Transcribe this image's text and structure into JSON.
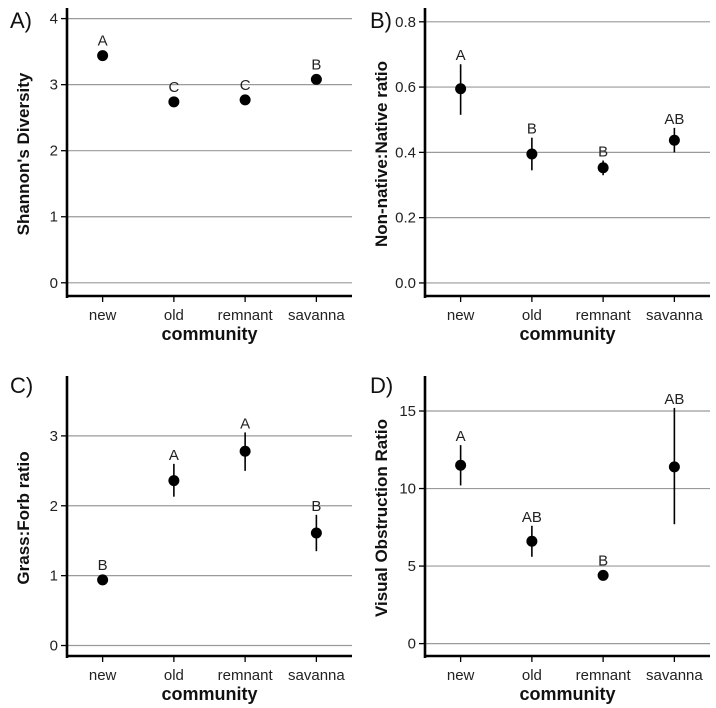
{
  "chart_data": [
    {
      "type": "scatter",
      "panel_label": "A)",
      "xlabel": "community",
      "ylabel": "Shannon's Diversity",
      "categories": [
        "new",
        "old",
        "remnant",
        "savanna"
      ],
      "values": [
        3.44,
        2.74,
        2.77,
        3.08
      ],
      "error_low": [
        3.4,
        2.69,
        2.72,
        3.04
      ],
      "error_high": [
        3.48,
        2.79,
        2.82,
        3.12
      ],
      "letters": [
        "A",
        "C",
        "C",
        "B"
      ],
      "ylim": [
        -0.2,
        4.1
      ],
      "yticks": [
        0,
        1,
        2,
        3,
        4
      ],
      "grid": true
    },
    {
      "type": "scatter",
      "panel_label": "B)",
      "xlabel": "community",
      "ylabel": "Non-native:Native ratio",
      "categories": [
        "new",
        "old",
        "remnant",
        "savanna"
      ],
      "values": [
        0.595,
        0.395,
        0.353,
        0.437
      ],
      "error_low": [
        0.515,
        0.345,
        0.33,
        0.4
      ],
      "error_high": [
        0.67,
        0.445,
        0.375,
        0.475
      ],
      "letters": [
        "A",
        "B",
        "B",
        "AB"
      ],
      "ylim": [
        -0.04,
        0.83
      ],
      "yticks": [
        0.0,
        0.2,
        0.4,
        0.6,
        0.8
      ],
      "ytick_labels": [
        "0.0",
        "0.2",
        "0.4",
        "0.6",
        "0.8"
      ],
      "grid": true
    },
    {
      "type": "scatter",
      "panel_label": "C)",
      "xlabel": "community",
      "ylabel": "Grass:Forb ratio",
      "categories": [
        "new",
        "old",
        "remnant",
        "savanna"
      ],
      "values": [
        0.94,
        2.36,
        2.78,
        1.61
      ],
      "error_low": [
        0.88,
        2.13,
        2.5,
        1.35
      ],
      "error_high": [
        1.0,
        2.6,
        3.05,
        1.87
      ],
      "letters": [
        "B",
        "A",
        "A",
        "B"
      ],
      "ylim": [
        -0.15,
        3.8
      ],
      "yticks": [
        0,
        1,
        2,
        3
      ],
      "grid": true
    },
    {
      "type": "scatter",
      "panel_label": "D)",
      "xlabel": "community",
      "ylabel": "Visual Obstruction Ratio",
      "categories": [
        "new",
        "old",
        "remnant",
        "savanna"
      ],
      "values": [
        11.5,
        6.6,
        4.4,
        11.4
      ],
      "error_low": [
        10.2,
        5.6,
        4.1,
        7.7
      ],
      "error_high": [
        12.8,
        7.6,
        4.7,
        15.2
      ],
      "letters": [
        "A",
        "AB",
        "B",
        "AB"
      ],
      "ylim": [
        -0.8,
        17.0
      ],
      "yticks": [
        0,
        5,
        10,
        15
      ],
      "grid": true
    }
  ]
}
